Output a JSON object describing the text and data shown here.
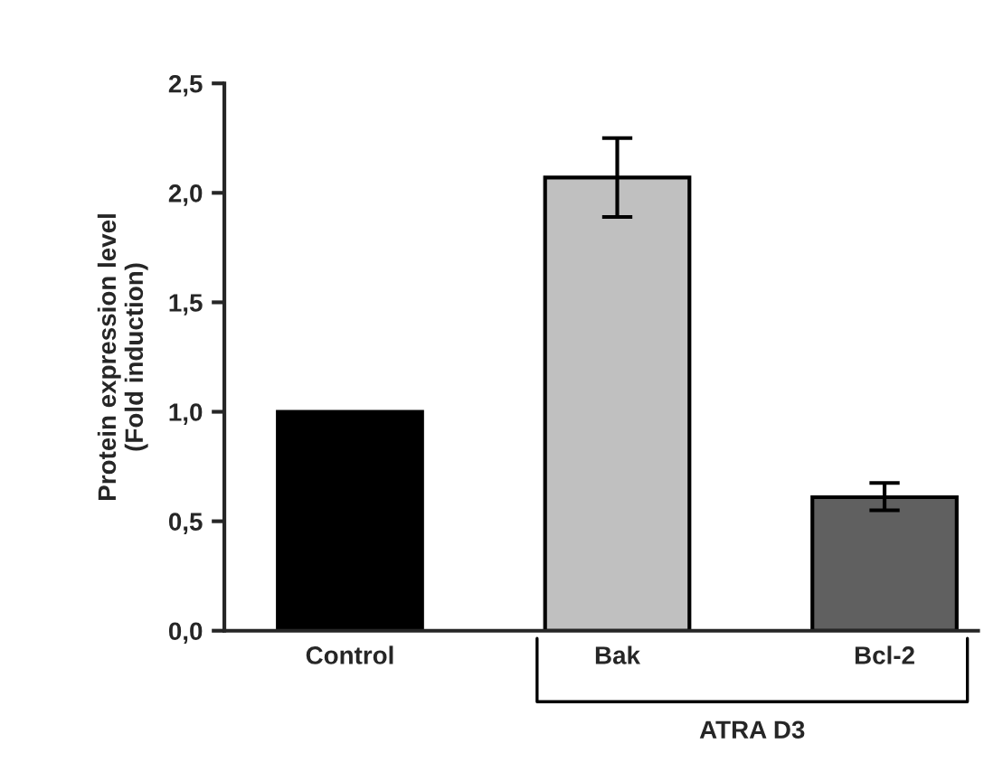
{
  "chart_data": {
    "type": "bar",
    "ylabel": "Protein expression level\n(Fold induction)",
    "categories": [
      "Control",
      "Bak",
      "Bcl-2"
    ],
    "values": [
      1.0,
      2.07,
      0.61
    ],
    "colors": [
      "#000000",
      "#c0c0c0",
      "#606060"
    ],
    "errors": [
      null,
      [
        1.89,
        2.25
      ],
      [
        0.55,
        0.675
      ]
    ],
    "ylim": [
      0,
      2.5
    ],
    "yticks": [
      {
        "value": 0,
        "label": "0,0"
      },
      {
        "value": 0.5,
        "label": "0,5"
      },
      {
        "value": 1.0,
        "label": "1,0"
      },
      {
        "value": 1.5,
        "label": "1,5"
      },
      {
        "value": 2.0,
        "label": "2,0"
      },
      {
        "value": 2.5,
        "label": "2,5"
      }
    ],
    "annotations": [
      "ATRA D3"
    ],
    "grid": false,
    "legend": false
  }
}
